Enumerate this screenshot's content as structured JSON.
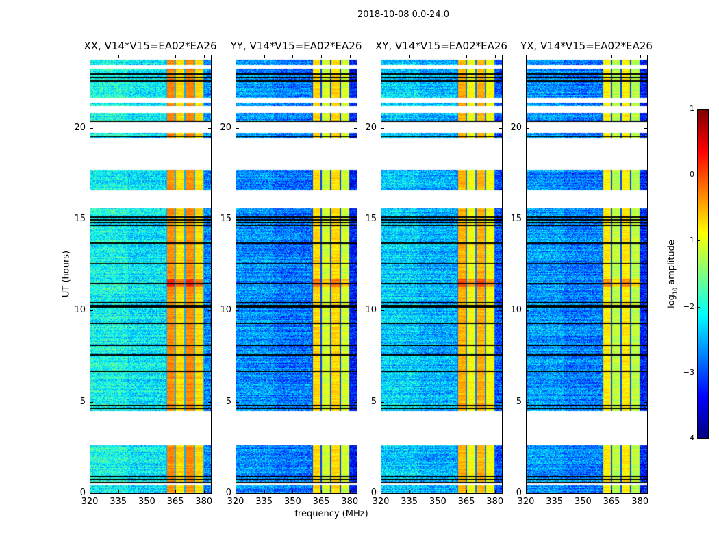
{
  "chart_data": {
    "type": "heatmap",
    "title": "2018-10-08 0.0-24.0",
    "xlabel": "frequency (MHz)",
    "ylabel": "UT (hours)",
    "xlim": [
      320,
      383.7
    ],
    "ylim": [
      0,
      24
    ],
    "xticks": [
      320,
      335,
      350,
      365,
      380
    ],
    "yticks": [
      0,
      5,
      10,
      15,
      20
    ],
    "panels": [
      {
        "title": "XX, V14*V15=EA02*EA26",
        "background_log": -2.2,
        "band_log": -0.35
      },
      {
        "title": "YY, V14*V15=EA02*EA26",
        "background_log": -2.8,
        "band_log": -0.75
      },
      {
        "title": "XY, V14*V15=EA02*EA26",
        "background_log": -2.5,
        "band_log": -0.55
      },
      {
        "title": "YX, V14*V15=EA02*EA26",
        "background_log": -2.75,
        "band_log": -0.85
      }
    ],
    "bright_band_mhz": [
      360,
      380
    ],
    "subband_edges_mhz": [
      360,
      365,
      370,
      375,
      380
    ],
    "data_start_hours": 0.05,
    "data_end_hours": 23.77,
    "gaps_hours": [
      [
        0.45,
        0.55
      ],
      [
        2.62,
        4.5
      ],
      [
        15.64,
        16.61
      ],
      [
        17.74,
        19.46
      ],
      [
        19.76,
        20.36
      ],
      [
        20.85,
        21.22
      ],
      [
        21.41,
        21.67
      ],
      [
        23.28,
        23.47
      ]
    ],
    "flagged_lines_hours": [
      0.6,
      0.75,
      0.9,
      4.65,
      4.8,
      6.7,
      7.6,
      8.1,
      9.3,
      10.2,
      10.3,
      10.45,
      11.5,
      12.6,
      13.7,
      14.7,
      14.85,
      15.0,
      15.15,
      19.55,
      20.4,
      22.6,
      22.8,
      23.0,
      23.33
    ],
    "colorbar": {
      "label_main": "log",
      "label_sub": "10",
      "label_rest": " amplitude",
      "range": [
        -4,
        1
      ],
      "ticks": [
        "1",
        "0",
        "−1",
        "−2",
        "−3",
        "−4"
      ],
      "tick_values": [
        1,
        0,
        -1,
        -2,
        -3,
        -4
      ],
      "colormap": "jet"
    }
  }
}
